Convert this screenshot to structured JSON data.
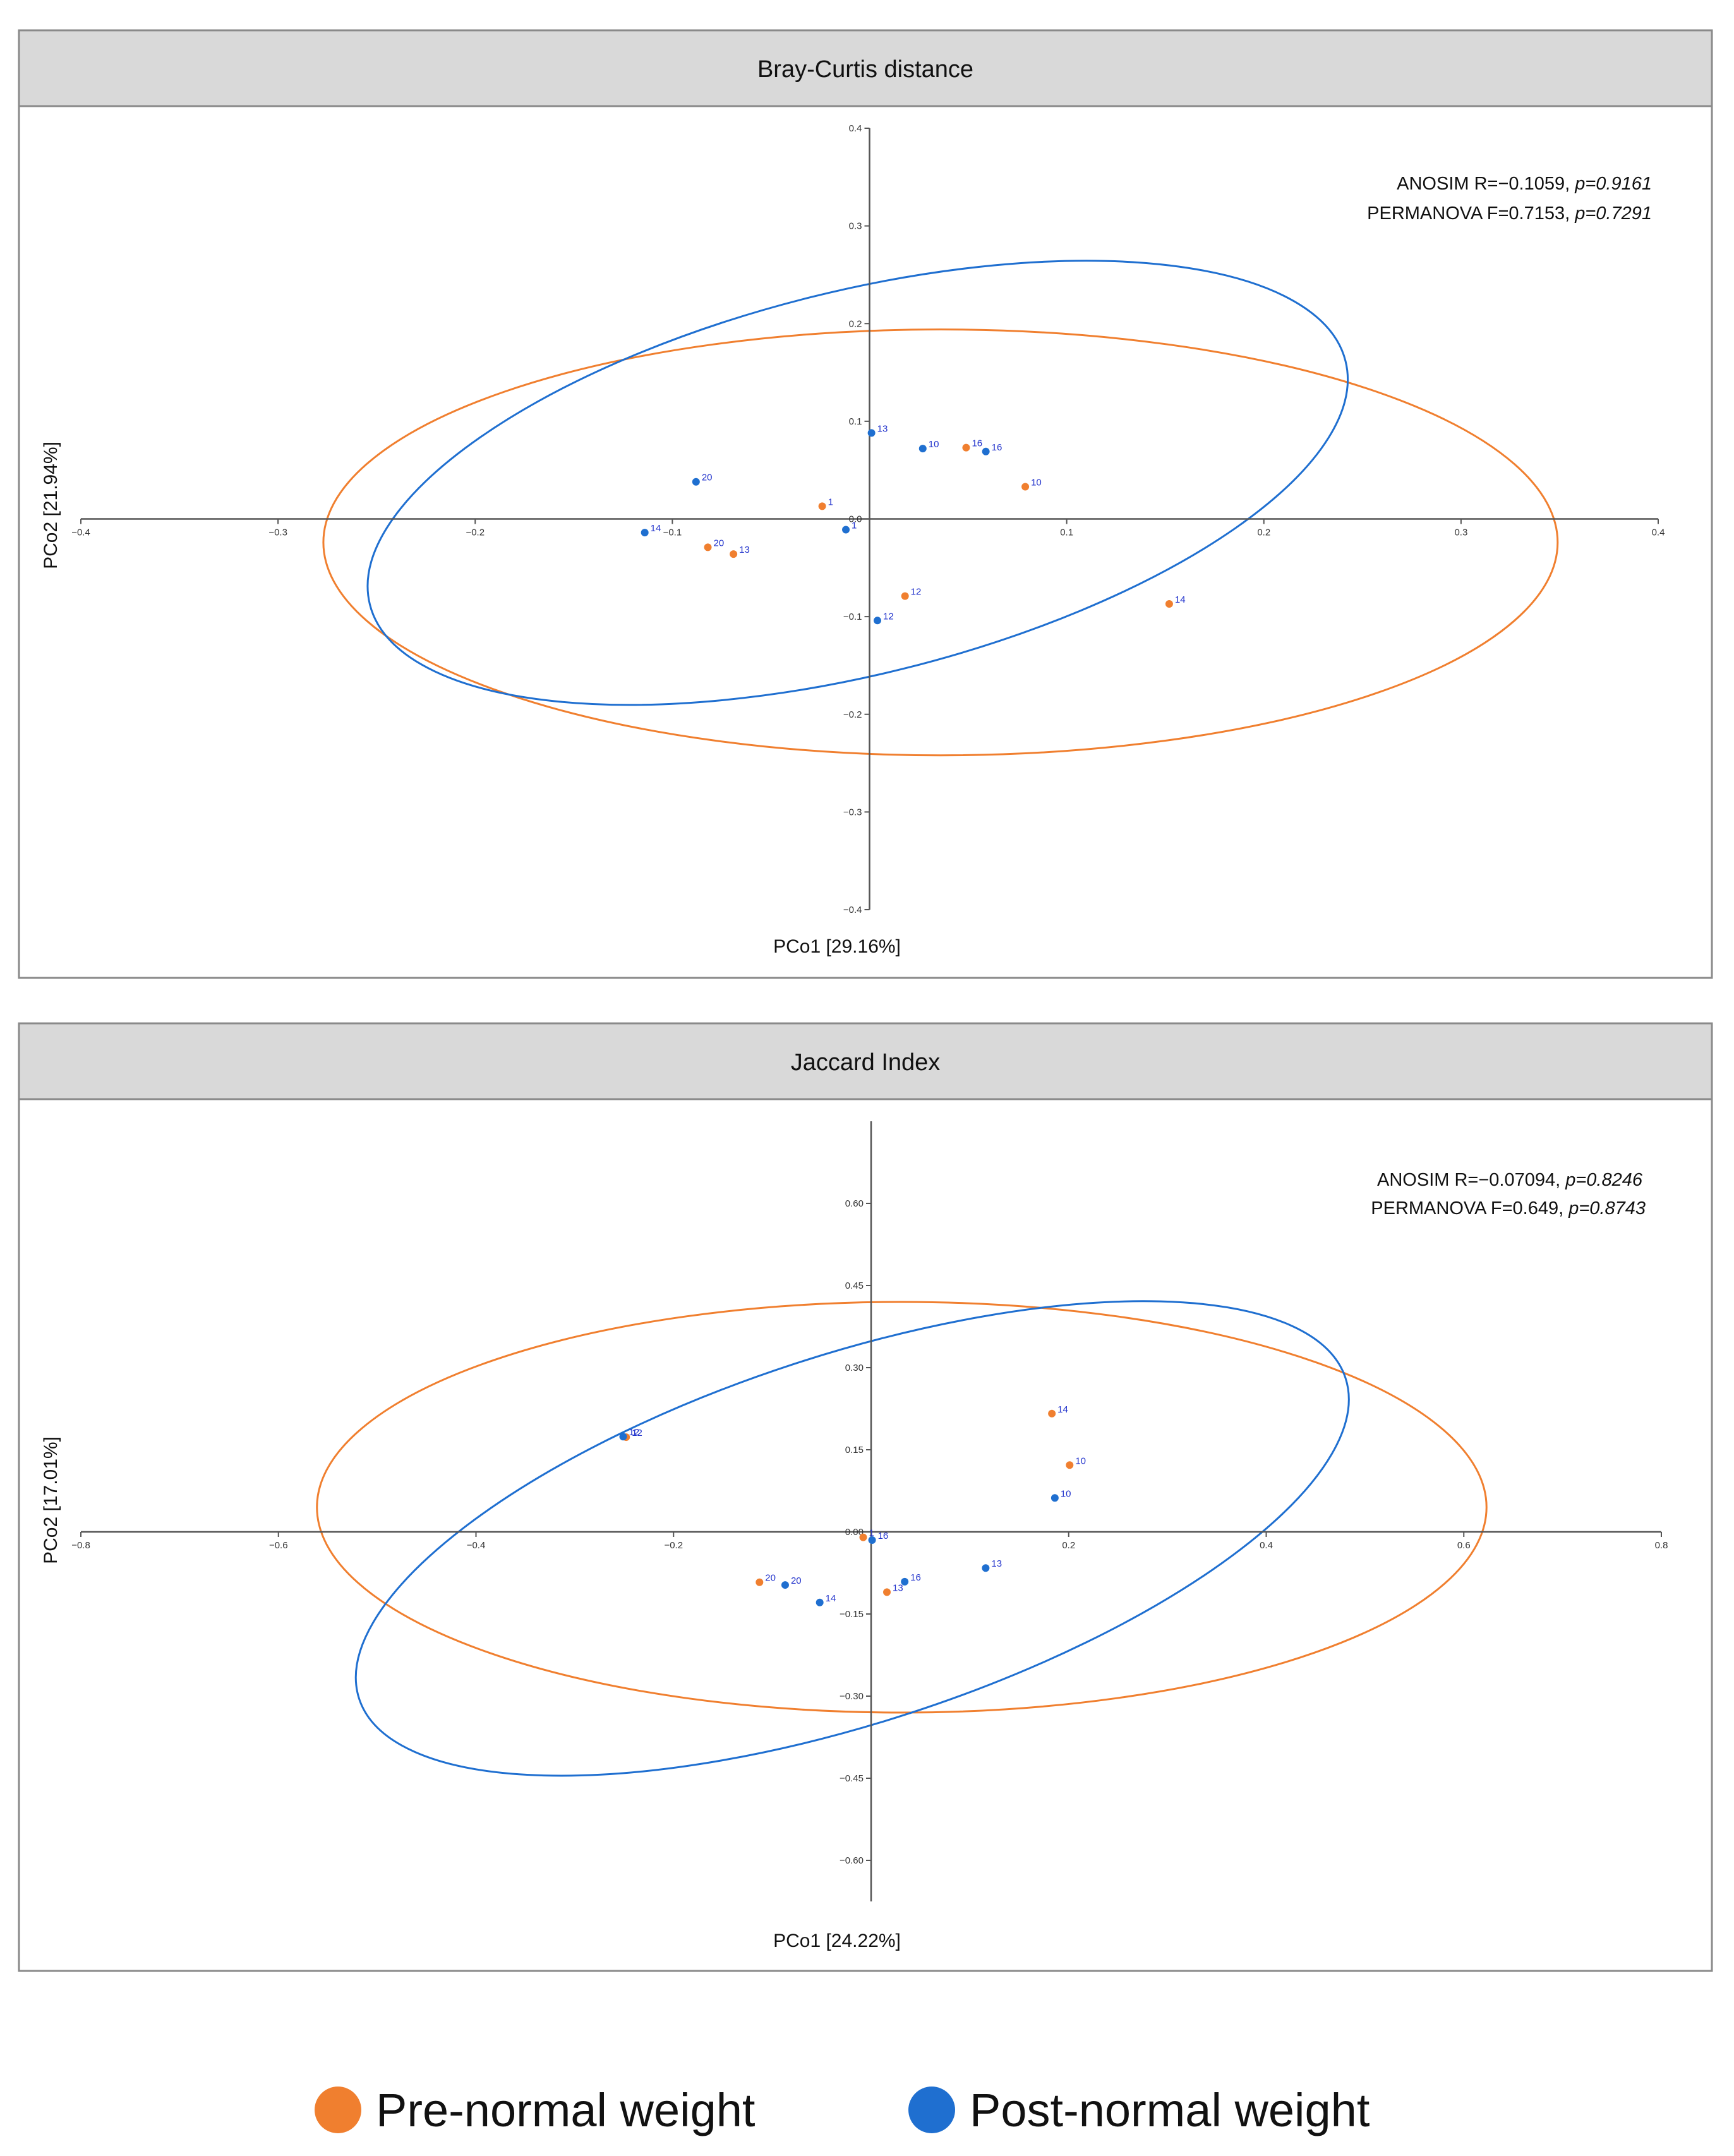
{
  "legend": [
    {
      "label": "Pre-normal weight",
      "color": "#f07f2f"
    },
    {
      "label": "Post-normal weight",
      "color": "#1f6fd0"
    }
  ],
  "chart_data": [
    {
      "type": "scatter",
      "title": "Bray-Curtis distance",
      "xlabel": "PCo1 [29.16%]",
      "ylabel": "PCo2 [21.94%]",
      "xlim": [
        -0.4,
        0.4
      ],
      "ylim": [
        -0.4,
        0.4
      ],
      "xticks": [
        -0.4,
        -0.3,
        -0.2,
        -0.1,
        0.1,
        0.2,
        0.3,
        0.4
      ],
      "xtick_labels": [
        "−0.4",
        "−0.3",
        "−0.2",
        "−0.1",
        "0.1",
        "0.2",
        "0.3",
        "0.4"
      ],
      "yticks": [
        0.4,
        0.3,
        0.2,
        0.1,
        0,
        -0.1,
        -0.2,
        -0.3,
        -0.4
      ],
      "ytick_labels": [
        "0.4",
        "0.3",
        "0.2",
        "0.1",
        "0.0",
        "−0.1",
        "−0.2",
        "−0.3",
        "−0.4"
      ],
      "stats": [
        {
          "text": "ANOSIM R=−0.1059, ",
          "p": "p=0.9161"
        },
        {
          "text": "PERMANOVA F=0.7153, ",
          "p": "p=0.7291"
        }
      ],
      "series": [
        {
          "name": "Pre-normal weight",
          "color": "#f07f2f",
          "points": [
            {
              "x": -0.024,
              "y": 0.013,
              "label": "1"
            },
            {
              "x": -0.082,
              "y": -0.029,
              "label": "20"
            },
            {
              "x": -0.069,
              "y": -0.036,
              "label": "13"
            },
            {
              "x": 0.049,
              "y": 0.073,
              "label": "16"
            },
            {
              "x": 0.079,
              "y": 0.033,
              "label": "10"
            },
            {
              "x": 0.018,
              "y": -0.079,
              "label": "12"
            },
            {
              "x": 0.152,
              "y": -0.087,
              "label": "14"
            }
          ],
          "ellipse": {
            "cx": 0.036,
            "cy": -0.024,
            "rx": 0.313,
            "ry": 0.218,
            "angle": 0
          }
        },
        {
          "name": "Post-normal weight",
          "color": "#1f6fd0",
          "points": [
            {
              "x": 0.001,
              "y": 0.088,
              "label": "13"
            },
            {
              "x": 0.027,
              "y": 0.072,
              "label": "10"
            },
            {
              "x": 0.059,
              "y": 0.069,
              "label": "16"
            },
            {
              "x": -0.088,
              "y": 0.038,
              "label": "20"
            },
            {
              "x": -0.114,
              "y": -0.014,
              "label": "14"
            },
            {
              "x": -0.012,
              "y": -0.011,
              "label": "1"
            },
            {
              "x": 0.004,
              "y": -0.104,
              "label": "12"
            }
          ],
          "ellipse": {
            "cx": -0.006,
            "cy": 0.037,
            "rx": 0.255,
            "ry": 0.196,
            "angle": -14
          }
        }
      ]
    },
    {
      "type": "scatter",
      "title": "Jaccard Index",
      "xlabel": "PCo1 [24.22%]",
      "ylabel": "PCo2 [17.01%]",
      "xlim": [
        -0.8,
        0.8
      ],
      "ylim": [
        -0.675,
        0.75
      ],
      "xticks": [
        -0.8,
        -0.6,
        -0.4,
        -0.2,
        0.2,
        0.4,
        0.6,
        0.8
      ],
      "xtick_labels": [
        "−0.8",
        "−0.6",
        "−0.4",
        "−0.2",
        "0.2",
        "0.4",
        "0.6",
        "0.8"
      ],
      "yticks": [
        0.6,
        0.45,
        0.3,
        0.15,
        0,
        -0.15,
        -0.3,
        -0.45,
        -0.6
      ],
      "ytick_labels": [
        "0.60",
        "0.45",
        "0.30",
        "0.15",
        "0.00",
        "−0.15",
        "−0.30",
        "−0.45",
        "−0.60"
      ],
      "stats": [
        {
          "text": "ANOSIM R=−0.07094, ",
          "p": "p=0.8246"
        },
        {
          "text": "PERMANOVA F=0.649, ",
          "p": "p=0.8743"
        }
      ],
      "series": [
        {
          "name": "Pre-normal weight",
          "color": "#f07f2f",
          "points": [
            {
              "x": -0.248,
              "y": 0.173,
              "label": "12"
            },
            {
              "x": -0.008,
              "y": -0.01,
              "label": "1"
            },
            {
              "x": -0.113,
              "y": -0.092,
              "label": "20"
            },
            {
              "x": 0.016,
              "y": -0.11,
              "label": "13"
            },
            {
              "x": 0.183,
              "y": 0.216,
              "label": "14"
            },
            {
              "x": 0.201,
              "y": 0.122,
              "label": "10"
            }
          ],
          "ellipse": {
            "cx": 0.031,
            "cy": 0.045,
            "rx": 0.592,
            "ry": 0.375,
            "angle": 0
          }
        },
        {
          "name": "Post-normal weight",
          "color": "#1f6fd0",
          "points": [
            {
              "x": -0.251,
              "y": 0.174,
              "label": "12"
            },
            {
              "x": -0.087,
              "y": -0.097,
              "label": "20"
            },
            {
              "x": -0.052,
              "y": -0.129,
              "label": "14"
            },
            {
              "x": 0.001,
              "y": -0.015,
              "label": "16"
            },
            {
              "x": 0.034,
              "y": -0.091,
              "label": "16"
            },
            {
              "x": 0.116,
              "y": -0.066,
              "label": "13"
            },
            {
              "x": 0.186,
              "y": 0.062,
              "label": "10"
            }
          ],
          "ellipse": {
            "cx": -0.019,
            "cy": -0.012,
            "rx": 0.525,
            "ry": 0.336,
            "angle": -18
          }
        }
      ]
    }
  ]
}
